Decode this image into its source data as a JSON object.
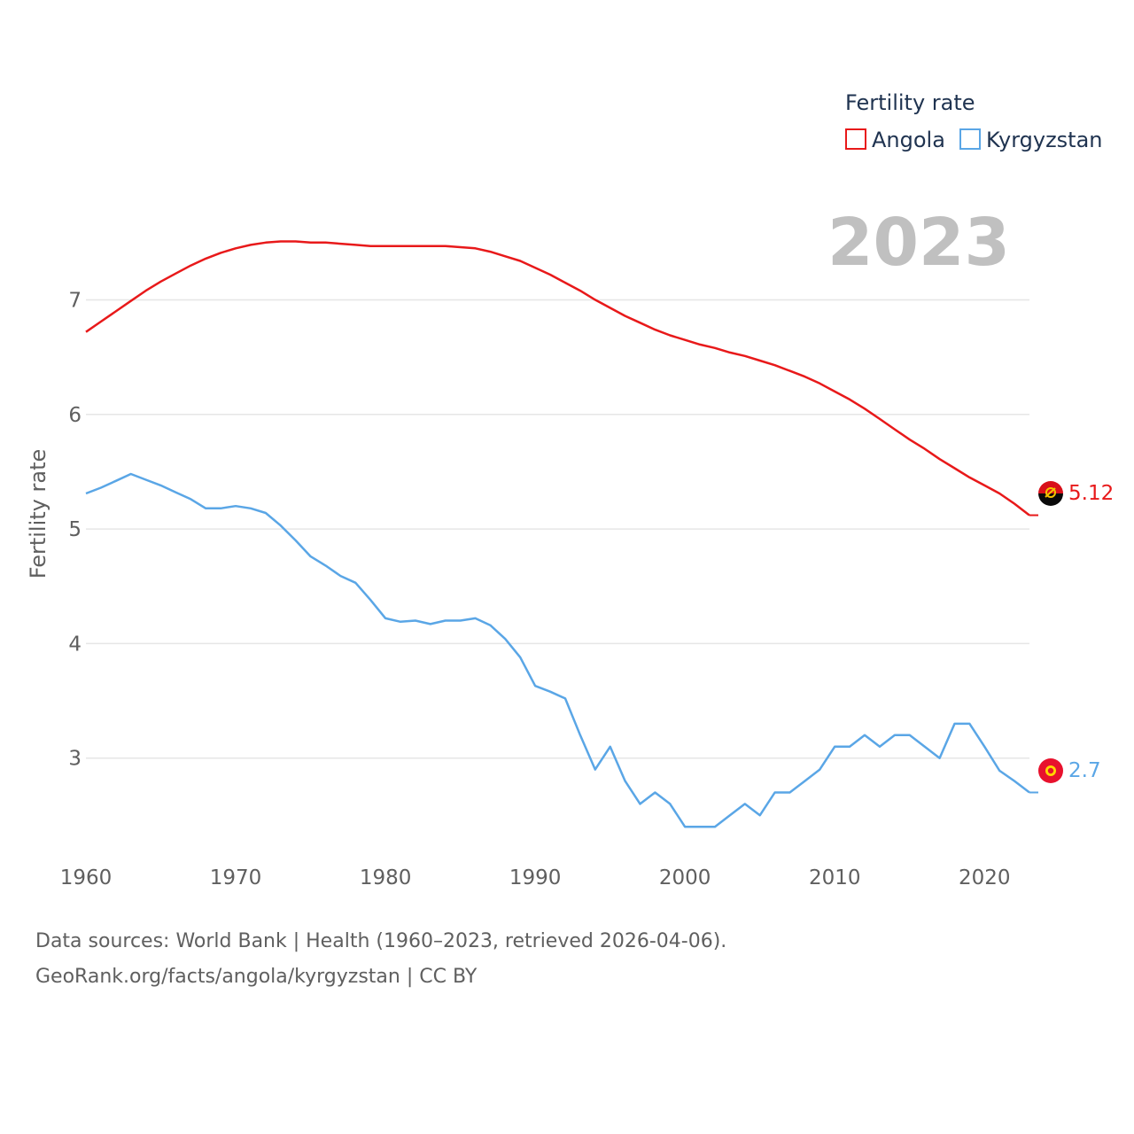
{
  "colors": {
    "angola": "#e8191a",
    "kyrgyzstan": "#5aa6e6",
    "grid": "#e6e6e6",
    "text": "#5f5f5f",
    "year": "#c0c0c0"
  },
  "chart_data": {
    "type": "line",
    "title": "Fertility rate",
    "year_label": "2023",
    "xlabel": "",
    "ylabel": "Fertility rate",
    "xlim": [
      1960,
      2023
    ],
    "ylim": [
      2.0,
      7.8
    ],
    "x_ticks": [
      "1960",
      "1970",
      "1980",
      "1990",
      "2000",
      "2010",
      "2020"
    ],
    "y_ticks": [
      "3",
      "4",
      "5",
      "6",
      "7"
    ],
    "x": [
      1960,
      1961,
      1962,
      1963,
      1964,
      1965,
      1966,
      1967,
      1968,
      1969,
      1970,
      1971,
      1972,
      1973,
      1974,
      1975,
      1976,
      1977,
      1978,
      1979,
      1980,
      1981,
      1982,
      1983,
      1984,
      1985,
      1986,
      1987,
      1988,
      1989,
      1990,
      1991,
      1992,
      1993,
      1994,
      1995,
      1996,
      1997,
      1998,
      1999,
      2000,
      2001,
      2002,
      2003,
      2004,
      2005,
      2006,
      2007,
      2008,
      2009,
      2010,
      2011,
      2012,
      2013,
      2014,
      2015,
      2016,
      2017,
      2018,
      2019,
      2020,
      2021,
      2022,
      2023
    ],
    "series": [
      {
        "name": "Angola",
        "key": "angola",
        "end_label": "5.12",
        "values": [
          6.72,
          6.81,
          6.9,
          6.99,
          7.08,
          7.16,
          7.23,
          7.3,
          7.36,
          7.41,
          7.45,
          7.48,
          7.5,
          7.51,
          7.51,
          7.5,
          7.5,
          7.49,
          7.48,
          7.47,
          7.47,
          7.47,
          7.47,
          7.47,
          7.47,
          7.46,
          7.45,
          7.42,
          7.38,
          7.34,
          7.28,
          7.22,
          7.15,
          7.08,
          7.0,
          6.93,
          6.86,
          6.8,
          6.74,
          6.69,
          6.65,
          6.61,
          6.58,
          6.54,
          6.51,
          6.47,
          6.43,
          6.38,
          6.33,
          6.27,
          6.2,
          6.13,
          6.05,
          5.96,
          5.87,
          5.78,
          5.7,
          5.61,
          5.53,
          5.45,
          5.38,
          5.31,
          5.22,
          5.12
        ]
      },
      {
        "name": "Kyrgyzstan",
        "key": "kyrgyzstan",
        "end_label": "2.7",
        "values": [
          5.31,
          5.36,
          5.42,
          5.48,
          5.43,
          5.38,
          5.32,
          5.26,
          5.18,
          5.18,
          5.2,
          5.18,
          5.14,
          5.03,
          4.9,
          4.76,
          4.68,
          4.59,
          4.53,
          4.38,
          4.22,
          4.19,
          4.2,
          4.17,
          4.2,
          4.2,
          4.22,
          4.16,
          4.04,
          3.88,
          3.63,
          3.58,
          3.52,
          3.2,
          2.9,
          3.1,
          2.8,
          2.6,
          2.7,
          2.6,
          2.4,
          2.4,
          2.4,
          2.5,
          2.6,
          2.5,
          2.7,
          2.7,
          2.8,
          2.9,
          3.1,
          3.1,
          3.2,
          3.1,
          3.2,
          3.2,
          3.1,
          3.0,
          3.3,
          3.3,
          3.1,
          2.89,
          2.8,
          2.7
        ]
      }
    ]
  },
  "legend": {
    "title": "Fertility rate",
    "items": [
      "Angola",
      "Kyrgyzstan"
    ]
  },
  "footer": {
    "line1": "Data sources: World Bank | Health (1960–2023, retrieved 2026-04-06).",
    "line2": "GeoRank.org/facts/angola/kyrgyzstan | CC BY"
  }
}
